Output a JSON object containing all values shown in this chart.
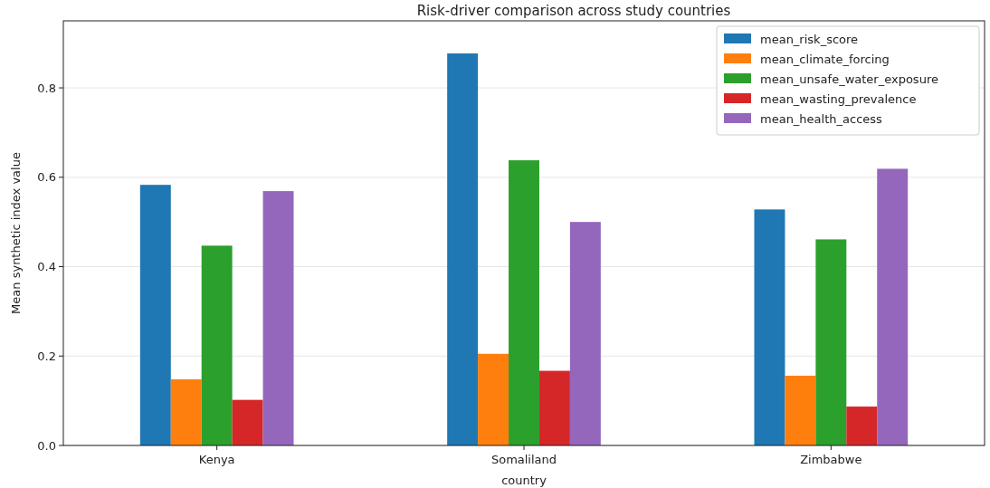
{
  "chart_data": {
    "type": "bar",
    "title": "Risk-driver comparison across study countries",
    "xlabel": "country",
    "ylabel": "Mean synthetic index value",
    "categories": [
      "Kenya",
      "Somaliland",
      "Zimbabwe"
    ],
    "series": [
      {
        "name": "mean_risk_score",
        "color": "#1f77b4",
        "values": [
          0.583,
          0.877,
          0.528
        ]
      },
      {
        "name": "mean_climate_forcing",
        "color": "#ff7f0e",
        "values": [
          0.148,
          0.205,
          0.156
        ]
      },
      {
        "name": "mean_unsafe_water_exposure",
        "color": "#2ca02c",
        "values": [
          0.447,
          0.638,
          0.461
        ]
      },
      {
        "name": "mean_wasting_prevalence",
        "color": "#d62728",
        "values": [
          0.102,
          0.167,
          0.087
        ]
      },
      {
        "name": "mean_health_access",
        "color": "#9467bd",
        "values": [
          0.569,
          0.5,
          0.619
        ]
      }
    ],
    "ylim": [
      0,
      0.95
    ],
    "yticks": [
      {
        "value": 0,
        "label": "0.0"
      },
      {
        "value": 0.2,
        "label": "0.2"
      },
      {
        "value": 0.4,
        "label": "0.4"
      },
      {
        "value": 0.6,
        "label": "0.6"
      },
      {
        "value": 0.8,
        "label": "0.8"
      }
    ],
    "grid": "y",
    "legend": "top right"
  }
}
